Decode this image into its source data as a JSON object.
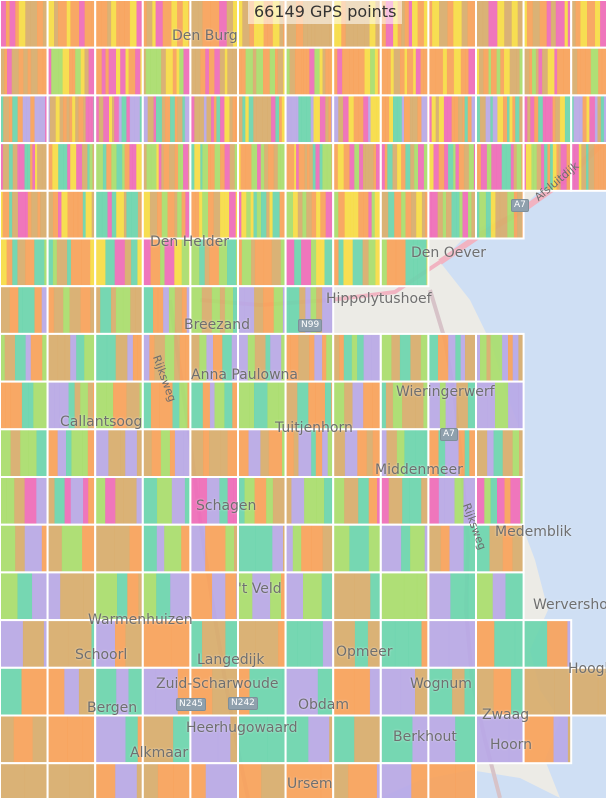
{
  "status": {
    "point_count_label": "66149 GPS points"
  },
  "colors": {
    "orange": "#f9a25a",
    "tan": "#d8ad6c",
    "yellow": "#f7dc45",
    "pink": "#ef6bb8",
    "green": "#a9dd6c",
    "teal": "#6bd5ae",
    "lavender": "#b8a8e6",
    "water": "#cfdff4",
    "land": "#ecebe6"
  },
  "places": [
    {
      "name": "Den Burg"
    },
    {
      "name": "Den Helder"
    },
    {
      "name": "Den Oever"
    },
    {
      "name": "Hippolytushoef"
    },
    {
      "name": "Breezand"
    },
    {
      "name": "Anna Paulowna"
    },
    {
      "name": "Wieringerwerf"
    },
    {
      "name": "Callantsoog"
    },
    {
      "name": "Tuitjenhorn"
    },
    {
      "name": "Middenmeer"
    },
    {
      "name": "Schagen"
    },
    {
      "name": "Medemblik"
    },
    {
      "name": "'t Veld"
    },
    {
      "name": "Wervershoof"
    },
    {
      "name": "Warmenhuizen"
    },
    {
      "name": "Schoorl"
    },
    {
      "name": "Langedijk"
    },
    {
      "name": "Opmeer"
    },
    {
      "name": "Hoogkarspel"
    },
    {
      "name": "Zuid-Scharwoude"
    },
    {
      "name": "Obdam"
    },
    {
      "name": "Wognum"
    },
    {
      "name": "Bergen"
    },
    {
      "name": "Zwaag"
    },
    {
      "name": "Heerhugowaard"
    },
    {
      "name": "Hoorn"
    },
    {
      "name": "Alkmaar"
    },
    {
      "name": "Berkhout"
    },
    {
      "name": "Ursem"
    }
  ],
  "road_labels": [
    {
      "name": "Afsluitdijk"
    },
    {
      "name": "Rijksweg"
    },
    {
      "name": "Rijksweg"
    }
  ],
  "road_shields": [
    "A7",
    "N99",
    "A7",
    "N245",
    "N242"
  ]
}
